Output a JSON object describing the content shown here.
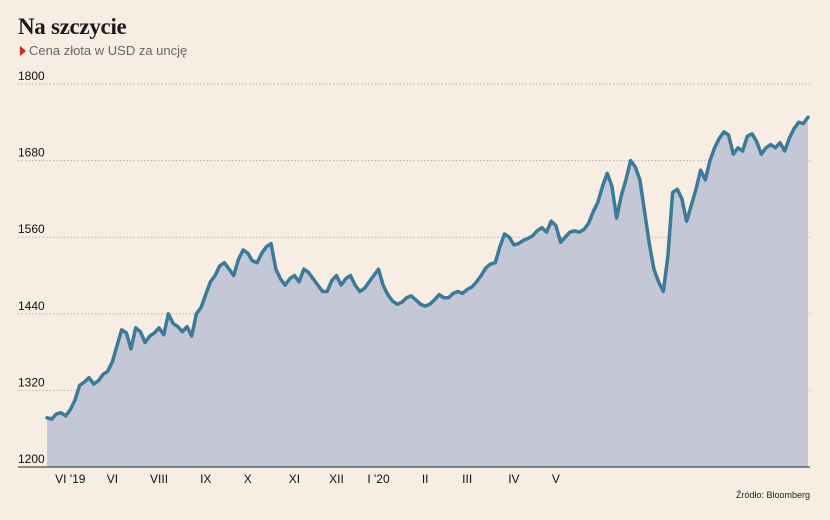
{
  "title": "Na szczycie",
  "subtitle": "Cena złota w USD za uncję",
  "source": "Źródło: Bloomberg",
  "colors": {
    "line": "#3d7a98",
    "area": "#c3c7d6",
    "background": "#f8ede2",
    "accent": "#d9261c"
  },
  "chart_data": {
    "type": "area",
    "title": "Na szczycie",
    "subtitle": "Cena złota w USD za uncję",
    "xlabel": "",
    "ylabel": "",
    "ylim": [
      1200,
      1800
    ],
    "yticks": [
      1200,
      1320,
      1440,
      1560,
      1680,
      1800
    ],
    "grid": "horizontal dotted",
    "xticks": [
      {
        "label": "VI '19",
        "i": 5
      },
      {
        "label": "VI",
        "i": 14
      },
      {
        "label": "VIII",
        "i": 24
      },
      {
        "label": "IX",
        "i": 34
      },
      {
        "label": "X",
        "i": 43
      },
      {
        "label": "XI",
        "i": 53
      },
      {
        "label": "XII",
        "i": 62
      },
      {
        "label": "I '20",
        "i": 71
      },
      {
        "label": "II",
        "i": 81
      },
      {
        "label": "III",
        "i": 90
      },
      {
        "label": "IV",
        "i": 100
      },
      {
        "label": "V",
        "i": 109
      }
    ],
    "series": [
      {
        "values": [
          1277,
          1275,
          1283,
          1285,
          1280,
          1290,
          1305,
          1328,
          1333,
          1340,
          1330,
          1335,
          1345,
          1350,
          1365,
          1390,
          1415,
          1410,
          1385,
          1418,
          1412,
          1395,
          1405,
          1410,
          1418,
          1407,
          1440,
          1425,
          1420,
          1412,
          1420,
          1405,
          1440,
          1450,
          1470,
          1490,
          1500,
          1515,
          1520,
          1510,
          1500,
          1525,
          1540,
          1535,
          1523,
          1520,
          1535,
          1545,
          1550,
          1510,
          1495,
          1485,
          1495,
          1500,
          1490,
          1510,
          1505,
          1495,
          1485,
          1475,
          1475,
          1492,
          1500,
          1485,
          1495,
          1500,
          1485,
          1475,
          1480,
          1490,
          1500,
          1510,
          1485,
          1470,
          1460,
          1455,
          1458,
          1465,
          1468,
          1462,
          1455,
          1452,
          1455,
          1462,
          1470,
          1465,
          1465,
          1472,
          1475,
          1472,
          1478,
          1482,
          1490,
          1500,
          1512,
          1518,
          1520,
          1545,
          1565,
          1560,
          1548,
          1550,
          1555,
          1558,
          1562,
          1570,
          1575,
          1568,
          1585,
          1578,
          1552,
          1560,
          1568,
          1570,
          1568,
          1572,
          1582,
          1600,
          1615,
          1640,
          1660,
          1640,
          1590,
          1625,
          1650,
          1680,
          1670,
          1650,
          1600,
          1550,
          1510,
          1490,
          1475,
          1530,
          1630,
          1635,
          1620,
          1585,
          1610,
          1635,
          1665,
          1650,
          1680,
          1700,
          1715,
          1725,
          1720,
          1690,
          1700,
          1695,
          1718,
          1722,
          1710,
          1690,
          1700,
          1705,
          1700,
          1708,
          1695,
          1715,
          1730,
          1740,
          1738,
          1748
        ]
      }
    ]
  }
}
